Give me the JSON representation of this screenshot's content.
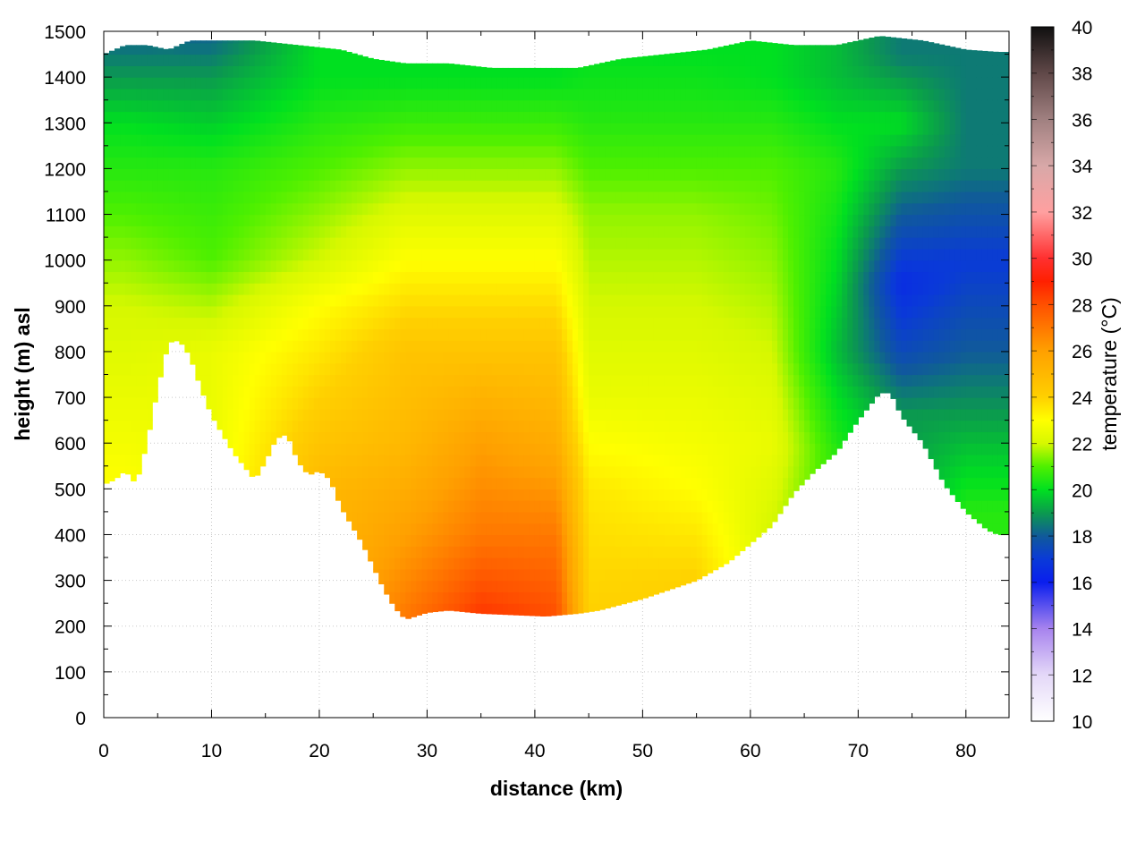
{
  "chart_data": {
    "type": "heatmap",
    "title": "",
    "xlabel": "distance (km)",
    "ylabel": "height (m) asl",
    "colorbar_label": "temperature (°C)",
    "xlim": [
      0,
      84
    ],
    "ylim": [
      0,
      1500
    ],
    "clim": [
      10,
      40
    ],
    "x_ticks": [
      0,
      10,
      20,
      30,
      40,
      50,
      60,
      70,
      80
    ],
    "y_ticks": [
      0,
      100,
      200,
      300,
      400,
      500,
      600,
      700,
      800,
      900,
      1000,
      1100,
      1200,
      1300,
      1400,
      1500
    ],
    "colorbar_ticks": [
      10,
      12,
      14,
      16,
      18,
      20,
      22,
      24,
      26,
      28,
      30,
      32,
      34,
      36,
      38,
      40
    ],
    "grid": true,
    "colormap": [
      {
        "t": 10,
        "color": "#ffffff"
      },
      {
        "t": 12,
        "color": "#e4d8f8"
      },
      {
        "t": 14,
        "color": "#a783ee"
      },
      {
        "t": 16,
        "color": "#0a1eee"
      },
      {
        "t": 17,
        "color": "#0a3ad8"
      },
      {
        "t": 18,
        "color": "#105a9a"
      },
      {
        "t": 19,
        "color": "#0b9a4e"
      },
      {
        "t": 20,
        "color": "#00e020"
      },
      {
        "t": 21,
        "color": "#4ef000"
      },
      {
        "t": 22,
        "color": "#d6f800"
      },
      {
        "t": 23,
        "color": "#ffff00"
      },
      {
        "t": 24,
        "color": "#ffd000"
      },
      {
        "t": 26,
        "color": "#ffa000"
      },
      {
        "t": 28,
        "color": "#ff5000"
      },
      {
        "t": 29,
        "color": "#ff2000"
      },
      {
        "t": 30,
        "color": "#ff3030"
      },
      {
        "t": 32,
        "color": "#ffa0a0"
      },
      {
        "t": 34,
        "color": "#d8a8a8"
      },
      {
        "t": 36,
        "color": "#a08080"
      },
      {
        "t": 38,
        "color": "#604848"
      },
      {
        "t": 40,
        "color": "#101010"
      }
    ],
    "terrain_profile": [
      [
        0,
        510
      ],
      [
        1,
        520
      ],
      [
        2,
        540
      ],
      [
        3,
        510
      ],
      [
        4,
        600
      ],
      [
        5,
        720
      ],
      [
        6,
        820
      ],
      [
        7,
        825
      ],
      [
        8,
        790
      ],
      [
        9,
        720
      ],
      [
        10,
        660
      ],
      [
        12,
        580
      ],
      [
        14,
        520
      ],
      [
        15,
        560
      ],
      [
        16,
        610
      ],
      [
        17,
        620
      ],
      [
        18,
        560
      ],
      [
        19,
        530
      ],
      [
        20,
        540
      ],
      [
        21,
        520
      ],
      [
        22,
        460
      ],
      [
        24,
        380
      ],
      [
        26,
        280
      ],
      [
        27,
        240
      ],
      [
        28,
        215
      ],
      [
        30,
        230
      ],
      [
        32,
        235
      ],
      [
        35,
        228
      ],
      [
        38,
        225
      ],
      [
        41,
        222
      ],
      [
        44,
        228
      ],
      [
        46,
        235
      ],
      [
        50,
        260
      ],
      [
        55,
        300
      ],
      [
        58,
        340
      ],
      [
        62,
        420
      ],
      [
        64,
        490
      ],
      [
        66,
        540
      ],
      [
        68,
        580
      ],
      [
        70,
        650
      ],
      [
        72,
        710
      ],
      [
        73,
        710
      ],
      [
        74,
        660
      ],
      [
        76,
        600
      ],
      [
        78,
        510
      ],
      [
        80,
        450
      ],
      [
        82,
        410
      ],
      [
        83,
        400
      ]
    ],
    "top_profile": [
      [
        0,
        1450
      ],
      [
        2,
        1470
      ],
      [
        4,
        1470
      ],
      [
        6,
        1460
      ],
      [
        8,
        1480
      ],
      [
        10,
        1480
      ],
      [
        14,
        1480
      ],
      [
        18,
        1470
      ],
      [
        22,
        1460
      ],
      [
        25,
        1440
      ],
      [
        28,
        1430
      ],
      [
        32,
        1430
      ],
      [
        36,
        1420
      ],
      [
        40,
        1420
      ],
      [
        44,
        1420
      ],
      [
        48,
        1440
      ],
      [
        52,
        1450
      ],
      [
        56,
        1460
      ],
      [
        60,
        1480
      ],
      [
        64,
        1470
      ],
      [
        68,
        1470
      ],
      [
        72,
        1490
      ],
      [
        76,
        1480
      ],
      [
        80,
        1460
      ],
      [
        83,
        1455
      ]
    ],
    "temperature_field": [
      {
        "x": 2,
        "profile": [
          [
            500,
            23
          ],
          [
            700,
            22.5
          ],
          [
            900,
            22
          ],
          [
            1100,
            21
          ],
          [
            1300,
            20
          ],
          [
            1500,
            18
          ]
        ]
      },
      {
        "x": 10,
        "profile": [
          [
            600,
            22.5
          ],
          [
            800,
            22.5
          ],
          [
            1000,
            21
          ],
          [
            1200,
            20.5
          ],
          [
            1400,
            19
          ],
          [
            1500,
            18
          ]
        ]
      },
      {
        "x": 20,
        "profile": [
          [
            500,
            25
          ],
          [
            700,
            24
          ],
          [
            900,
            23
          ],
          [
            1000,
            22
          ],
          [
            1200,
            21
          ],
          [
            1400,
            20
          ]
        ]
      },
      {
        "x": 28,
        "profile": [
          [
            220,
            27
          ],
          [
            400,
            26
          ],
          [
            600,
            25
          ],
          [
            800,
            24.5
          ],
          [
            1000,
            23
          ],
          [
            1200,
            21.5
          ],
          [
            1400,
            20
          ]
        ]
      },
      {
        "x": 35,
        "profile": [
          [
            230,
            28.5
          ],
          [
            400,
            27
          ],
          [
            600,
            26
          ],
          [
            800,
            24.5
          ],
          [
            1000,
            23
          ],
          [
            1200,
            21.5
          ],
          [
            1400,
            20
          ]
        ]
      },
      {
        "x": 42,
        "profile": [
          [
            225,
            28
          ],
          [
            400,
            27
          ],
          [
            600,
            25.5
          ],
          [
            800,
            24.5
          ],
          [
            1000,
            23
          ],
          [
            1200,
            21.5
          ],
          [
            1400,
            20
          ]
        ]
      },
      {
        "x": 45,
        "profile": [
          [
            230,
            24
          ],
          [
            500,
            23.5
          ],
          [
            700,
            22.5
          ],
          [
            900,
            22
          ],
          [
            1100,
            21.5
          ],
          [
            1300,
            20.5
          ],
          [
            1450,
            20
          ]
        ]
      },
      {
        "x": 55,
        "profile": [
          [
            300,
            24
          ],
          [
            500,
            23
          ],
          [
            700,
            22.5
          ],
          [
            900,
            22
          ],
          [
            1100,
            21.5
          ],
          [
            1300,
            20.5
          ],
          [
            1450,
            20
          ]
        ]
      },
      {
        "x": 62,
        "profile": [
          [
            420,
            22
          ],
          [
            600,
            22.5
          ],
          [
            800,
            22
          ],
          [
            1000,
            21.5
          ],
          [
            1200,
            21
          ],
          [
            1400,
            20
          ]
        ]
      },
      {
        "x": 68,
        "profile": [
          [
            580,
            20.5
          ],
          [
            700,
            20
          ],
          [
            800,
            19.5
          ],
          [
            1000,
            20
          ],
          [
            1200,
            20.5
          ],
          [
            1400,
            19.5
          ]
        ]
      },
      {
        "x": 74,
        "profile": [
          [
            660,
            19
          ],
          [
            800,
            17.5
          ],
          [
            950,
            16.5
          ],
          [
            1100,
            18
          ],
          [
            1300,
            20
          ],
          [
            1450,
            18.5
          ]
        ]
      },
      {
        "x": 80,
        "profile": [
          [
            450,
            20.5
          ],
          [
            600,
            19.5
          ],
          [
            800,
            18
          ],
          [
            1000,
            17
          ],
          [
            1200,
            18.5
          ],
          [
            1400,
            18.5
          ]
        ]
      }
    ]
  }
}
